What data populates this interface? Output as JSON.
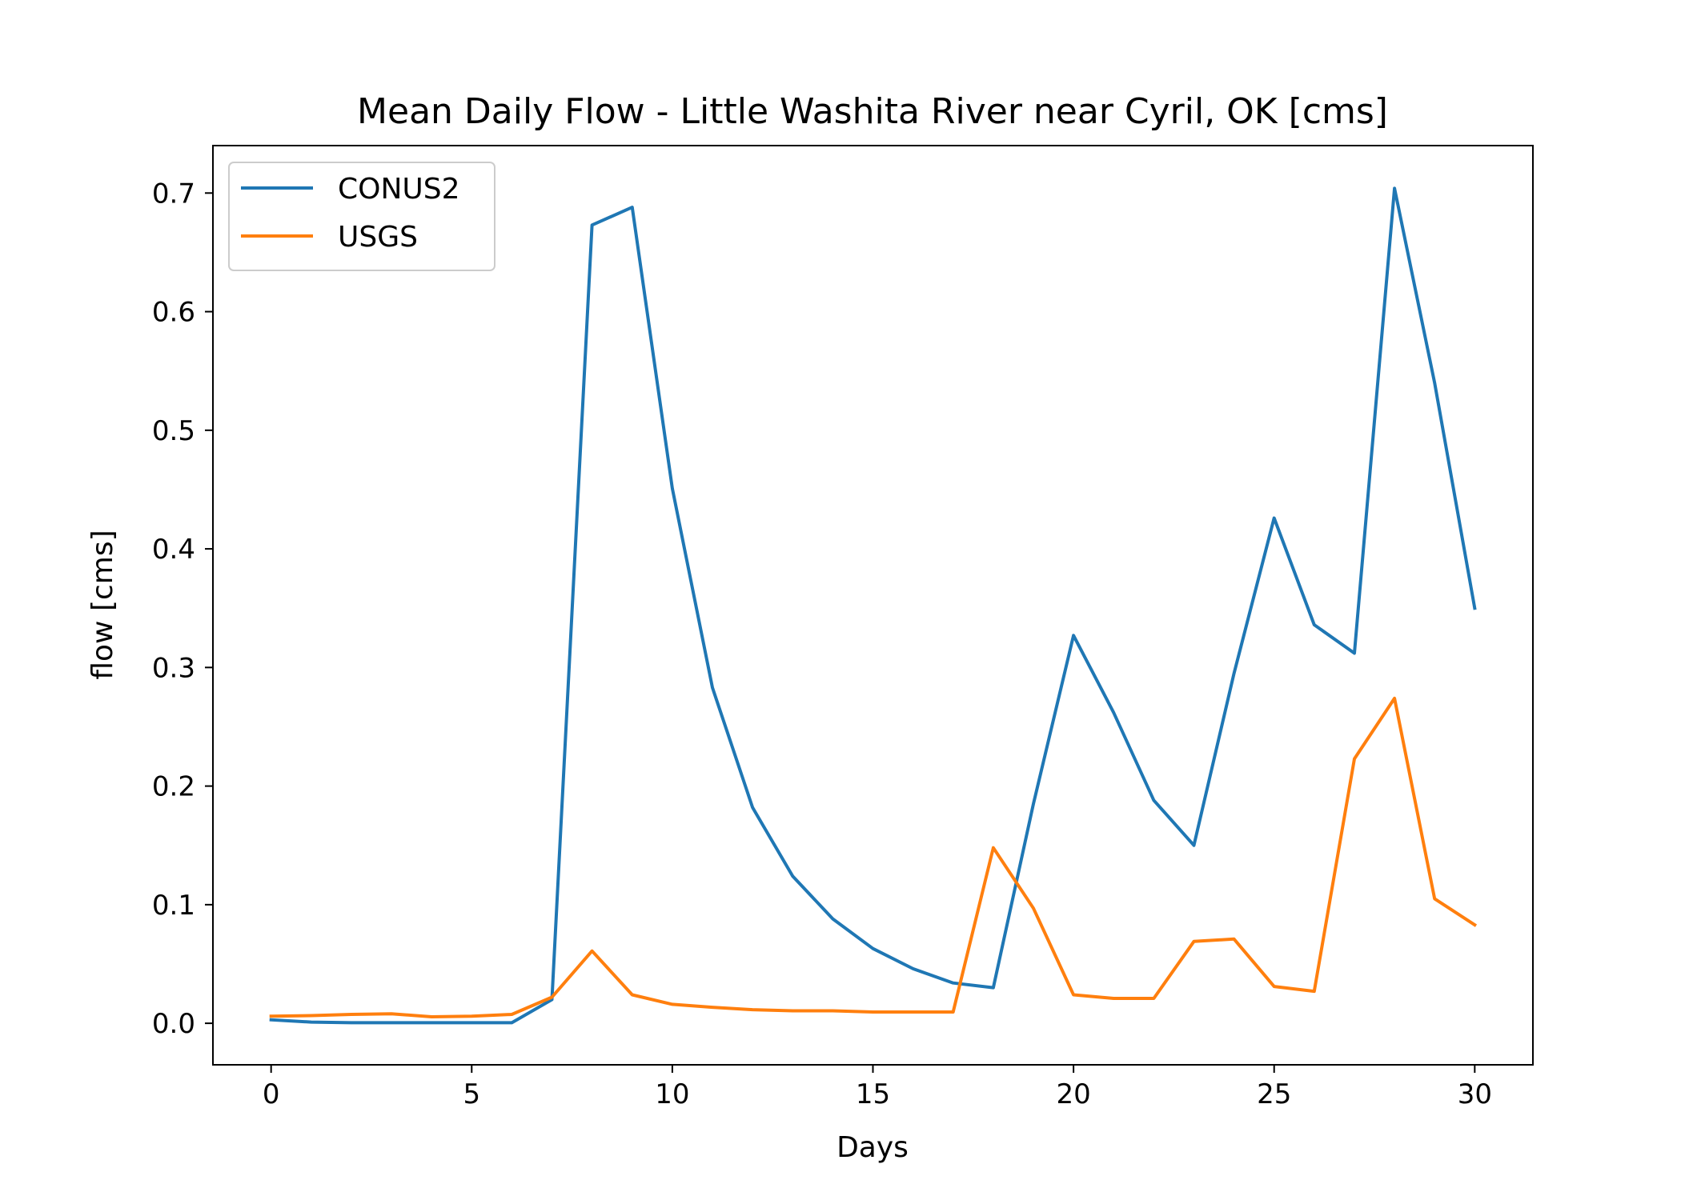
{
  "chart_data": {
    "type": "line",
    "title": "Mean Daily Flow - Little Washita River near Cyril, OK [cms]",
    "xlabel": "Days",
    "ylabel": "flow [cms]",
    "xlim": [
      -1.45,
      31.45
    ],
    "ylim": [
      -0.035,
      0.74
    ],
    "xticks": [
      0,
      5,
      10,
      15,
      20,
      25,
      30
    ],
    "yticks": [
      0.0,
      0.1,
      0.2,
      0.3,
      0.4,
      0.5,
      0.6,
      0.7
    ],
    "ytick_labels": [
      "0.0",
      "0.1",
      "0.2",
      "0.3",
      "0.4",
      "0.5",
      "0.6",
      "0.7"
    ],
    "grid": false,
    "legend_position": "upper-left",
    "x": [
      0,
      1,
      2,
      3,
      4,
      5,
      6,
      7,
      8,
      9,
      10,
      11,
      12,
      13,
      14,
      15,
      16,
      17,
      18,
      19,
      20,
      21,
      22,
      23,
      24,
      25,
      26,
      27,
      28,
      29,
      30
    ],
    "series": [
      {
        "name": "CONUS2",
        "color": "#1f77b4",
        "values": [
          0.003,
          0.001,
          0.0005,
          0.0005,
          0.0005,
          0.0005,
          0.0005,
          0.02,
          0.673,
          0.688,
          0.451,
          0.283,
          0.182,
          0.124,
          0.088,
          0.063,
          0.046,
          0.034,
          0.03,
          0.185,
          0.327,
          0.262,
          0.188,
          0.15,
          0.295,
          0.426,
          0.336,
          0.312,
          0.704,
          0.54,
          0.35
        ]
      },
      {
        "name": "USGS",
        "color": "#ff7f0e",
        "values": [
          0.006,
          0.0065,
          0.0075,
          0.008,
          0.0055,
          0.006,
          0.0075,
          0.022,
          0.061,
          0.024,
          0.016,
          0.0135,
          0.0115,
          0.0105,
          0.0105,
          0.0095,
          0.0095,
          0.0095,
          0.148,
          0.097,
          0.024,
          0.021,
          0.021,
          0.069,
          0.071,
          0.031,
          0.027,
          0.223,
          0.274,
          0.105,
          0.083
        ]
      }
    ]
  }
}
